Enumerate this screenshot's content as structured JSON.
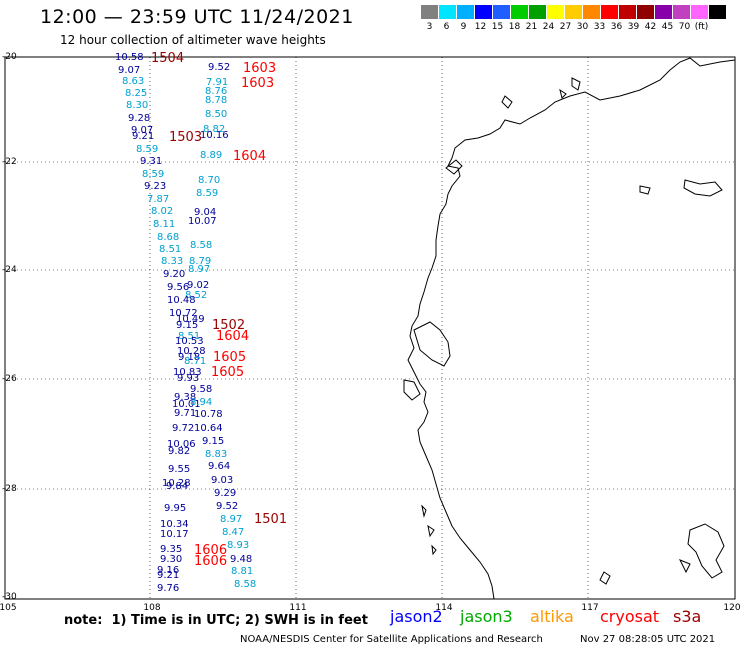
{
  "header": {
    "title": "12:00 — 23:59 UTC 11/24/2021",
    "subtitle": "12 hour collection of altimeter wave heights"
  },
  "legend": {
    "colors": [
      "#808080",
      "#00e5ff",
      "#00b0ff",
      "#0000ff",
      "#1f5fff",
      "#00cc00",
      "#00a000",
      "#ffff00",
      "#ffcc00",
      "#ff8800",
      "#ff0000",
      "#c00000",
      "#900000",
      "#8800aa",
      "#c040c0",
      "#ff66ff",
      "#000000"
    ],
    "labels": [
      "3",
      "6",
      "9",
      "12",
      "15",
      "18",
      "21",
      "24",
      "27",
      "30",
      "33",
      "36",
      "39",
      "42",
      "45",
      "70",
      "(ft)"
    ]
  },
  "axes": {
    "y_ticks": [
      "-20",
      "-22",
      "-24",
      "-26",
      "-28",
      "-30"
    ],
    "x_ticks": [
      "105",
      "108",
      "111",
      "114",
      "117",
      "120"
    ]
  },
  "footer": {
    "note": "note:  1) Time is in UTC; 2) SWH is in feet",
    "satellites": [
      {
        "name": "jason2",
        "color": "#0000ff"
      },
      {
        "name": "jason3",
        "color": "#00aa00"
      },
      {
        "name": "altika",
        "color": "#ff9900"
      },
      {
        "name": "cryosat",
        "color": "#ff0000"
      },
      {
        "name": "s3a",
        "color": "#990000"
      }
    ],
    "credit": "NOAA/NESDIS Center for Satellite Applications and Research",
    "timestamp": "Nov 27 08:28:05 UTC 2021"
  },
  "wave_heights": [
    {
      "v": "10.58",
      "c": "#000099"
    },
    {
      "v": "1504",
      "c": "#990000",
      "big": true
    },
    {
      "v": "9.07",
      "c": "#000099"
    },
    {
      "v": "9.52",
      "c": "#000099"
    },
    {
      "v": "1603",
      "c": "#ff0000",
      "big": true
    },
    {
      "v": "8.63",
      "c": "#00a0d0"
    },
    {
      "v": "7.91",
      "c": "#00a0d0"
    },
    {
      "v": "1603",
      "c": "#ff0000",
      "big": true
    },
    {
      "v": "8.25",
      "c": "#00a0d0"
    },
    {
      "v": "8.76",
      "c": "#00a0d0"
    },
    {
      "v": "8.30",
      "c": "#00a0d0"
    },
    {
      "v": "8.78",
      "c": "#00a0d0"
    },
    {
      "v": "9.28",
      "c": "#000099"
    },
    {
      "v": "8.50",
      "c": "#00a0d0"
    },
    {
      "v": "9.07",
      "c": "#000099"
    },
    {
      "v": "8.82",
      "c": "#00a0d0"
    },
    {
      "v": "9.21",
      "c": "#000099"
    },
    {
      "v": "1503",
      "c": "#990000",
      "big": true
    },
    {
      "v": "10.16",
      "c": "#000099"
    },
    {
      "v": "8.59",
      "c": "#00a0d0"
    },
    {
      "v": "8.89",
      "c": "#00a0d0"
    },
    {
      "v": "1604",
      "c": "#ff0000",
      "big": true
    },
    {
      "v": "9.31",
      "c": "#000099"
    },
    {
      "v": "8.59",
      "c": "#00a0d0"
    },
    {
      "v": "8.70",
      "c": "#00a0d0"
    },
    {
      "v": "9.23",
      "c": "#000099"
    },
    {
      "v": "8.59",
      "c": "#00a0d0"
    },
    {
      "v": "7.87",
      "c": "#00a0d0"
    },
    {
      "v": "8.02",
      "c": "#00a0d0"
    },
    {
      "v": "9.04",
      "c": "#000099"
    },
    {
      "v": "8.11",
      "c": "#00a0d0"
    },
    {
      "v": "10.07",
      "c": "#000099"
    },
    {
      "v": "8.68",
      "c": "#00a0d0"
    },
    {
      "v": "8.51",
      "c": "#00a0d0"
    },
    {
      "v": "8.58",
      "c": "#00a0d0"
    },
    {
      "v": "8.33",
      "c": "#00a0d0"
    },
    {
      "v": "8.79",
      "c": "#00a0d0"
    },
    {
      "v": "8.97",
      "c": "#00a0d0"
    },
    {
      "v": "9.20",
      "c": "#000099"
    },
    {
      "v": "9.56",
      "c": "#000099"
    },
    {
      "v": "9.02",
      "c": "#000099"
    },
    {
      "v": "8.52",
      "c": "#00a0d0"
    },
    {
      "v": "10.48",
      "c": "#000099"
    },
    {
      "v": "10.72",
      "c": "#000099"
    },
    {
      "v": "10.49",
      "c": "#000099"
    },
    {
      "v": "9.15",
      "c": "#000099"
    },
    {
      "v": "1502",
      "c": "#990000",
      "big": true
    },
    {
      "v": "8.51",
      "c": "#00a0d0"
    },
    {
      "v": "1604",
      "c": "#ff0000",
      "big": true
    },
    {
      "v": "10.53",
      "c": "#000099"
    },
    {
      "v": "10.28",
      "c": "#000099"
    },
    {
      "v": "9.18",
      "c": "#000099"
    },
    {
      "v": "8.71",
      "c": "#00a0d0"
    },
    {
      "v": "1605",
      "c": "#ff0000",
      "big": true
    },
    {
      "v": "10.83",
      "c": "#000099"
    },
    {
      "v": "1605",
      "c": "#ff0000",
      "big": true
    },
    {
      "v": "9.93",
      "c": "#000099"
    },
    {
      "v": "9.58",
      "c": "#000099"
    },
    {
      "v": "9.38",
      "c": "#000099"
    },
    {
      "v": "10.01",
      "c": "#000099"
    },
    {
      "v": "8.94",
      "c": "#00a0d0"
    },
    {
      "v": "9.71",
      "c": "#000099"
    },
    {
      "v": "10.78",
      "c": "#000099"
    },
    {
      "v": "9.72",
      "c": "#000099"
    },
    {
      "v": "10.64",
      "c": "#000099"
    },
    {
      "v": "10.06",
      "c": "#000099"
    },
    {
      "v": "9.15",
      "c": "#000099"
    },
    {
      "v": "9.82",
      "c": "#000099"
    },
    {
      "v": "8.83",
      "c": "#00a0d0"
    },
    {
      "v": "9.55",
      "c": "#000099"
    },
    {
      "v": "9.64",
      "c": "#000099"
    },
    {
      "v": "10.28",
      "c": "#000099"
    },
    {
      "v": "9.03",
      "c": "#000099"
    },
    {
      "v": "9.84",
      "c": "#000099"
    },
    {
      "v": "9.29",
      "c": "#000099"
    },
    {
      "v": "9.95",
      "c": "#000099"
    },
    {
      "v": "9.52",
      "c": "#000099"
    },
    {
      "v": "8.97",
      "c": "#00a0d0"
    },
    {
      "v": "1501",
      "c": "#990000",
      "big": true
    },
    {
      "v": "10.34",
      "c": "#000099"
    },
    {
      "v": "10.17",
      "c": "#000099"
    },
    {
      "v": "8.47",
      "c": "#00a0d0"
    },
    {
      "v": "8.93",
      "c": "#00a0d0"
    },
    {
      "v": "9.35",
      "c": "#000099"
    },
    {
      "v": "1606",
      "c": "#ff0000",
      "big": true
    },
    {
      "v": "9.30",
      "c": "#000099"
    },
    {
      "v": "1606",
      "c": "#ff0000",
      "big": true
    },
    {
      "v": "9.48",
      "c": "#000099"
    },
    {
      "v": "9.16",
      "c": "#000099"
    },
    {
      "v": "8.81",
      "c": "#00a0d0"
    },
    {
      "v": "9.21",
      "c": "#000099"
    },
    {
      "v": "9.76",
      "c": "#000099"
    },
    {
      "v": "8.58",
      "c": "#00a0d0"
    }
  ]
}
